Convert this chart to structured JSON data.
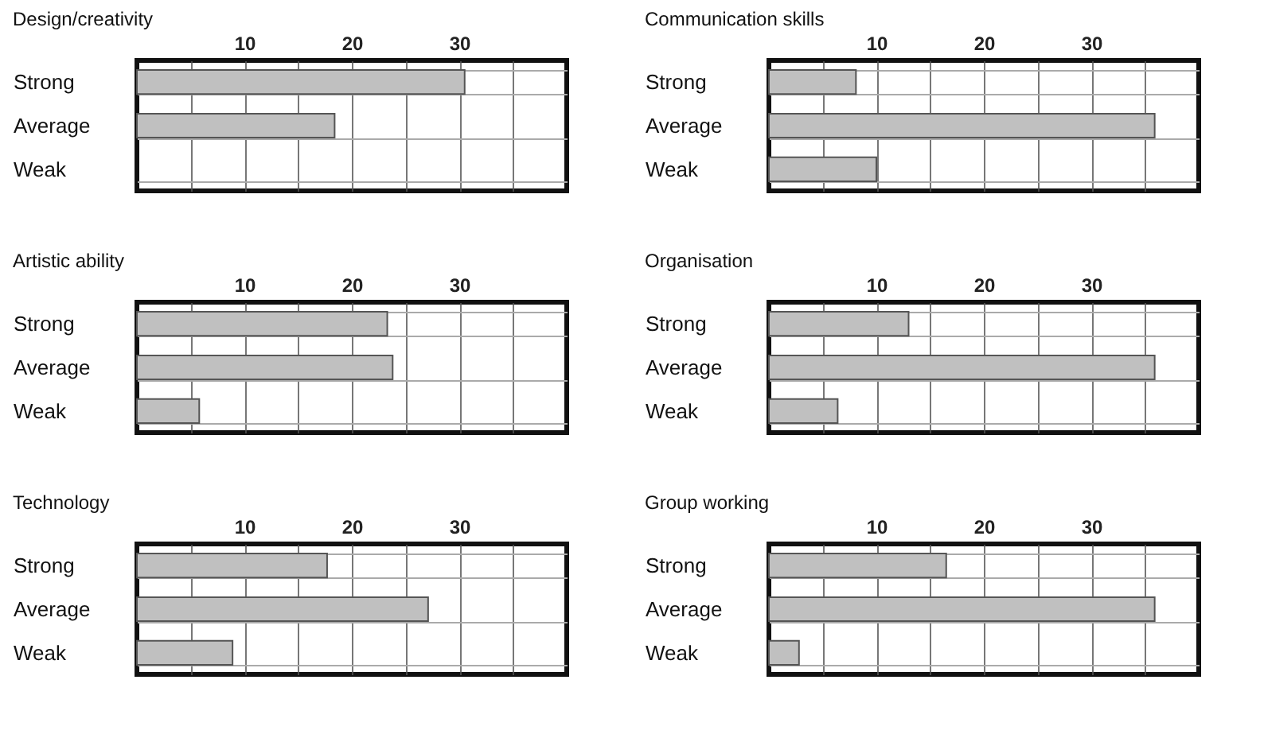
{
  "chart_data": [
    {
      "type": "bar",
      "orientation": "horizontal",
      "title": "Design/creativity",
      "categories": [
        "Strong",
        "Average",
        "Weak"
      ],
      "values": [
        30.5,
        18.4,
        0
      ],
      "color": "#c0c0c0",
      "xlim": [
        0,
        40
      ],
      "xticks": [
        {
          "value": 5,
          "label": null
        },
        10,
        {
          "value": 15,
          "label": null
        },
        20,
        {
          "value": 25,
          "label": null
        },
        30,
        {
          "value": 35,
          "label": null
        }
      ],
      "grid": true
    },
    {
      "type": "bar",
      "orientation": "horizontal",
      "title": "Communication skills",
      "categories": [
        "Strong",
        "Average",
        "Weak"
      ],
      "values": [
        8.1,
        35.9,
        10
      ],
      "color": "#c0c0c0",
      "xlim": [
        0,
        40
      ],
      "xticks": [
        {
          "value": 5,
          "label": null
        },
        10,
        {
          "value": 15,
          "label": null
        },
        20,
        {
          "value": 25,
          "label": null
        },
        30,
        {
          "value": 35,
          "label": null
        }
      ],
      "grid": true
    },
    {
      "type": "bar",
      "orientation": "horizontal",
      "title": "Artistic ability",
      "categories": [
        "Strong",
        "Average",
        "Weak"
      ],
      "values": [
        23.3,
        23.8,
        5.8
      ],
      "color": "#c0c0c0",
      "xlim": [
        0,
        40
      ],
      "xticks": [
        {
          "value": 5,
          "label": null
        },
        10,
        {
          "value": 15,
          "label": null
        },
        20,
        {
          "value": 25,
          "label": null
        },
        30,
        {
          "value": 35,
          "label": null
        }
      ],
      "grid": true
    },
    {
      "type": "bar",
      "orientation": "horizontal",
      "title": "Organisation",
      "categories": [
        "Strong",
        "Average",
        "Weak"
      ],
      "values": [
        13,
        35.9,
        6.4
      ],
      "color": "#c0c0c0",
      "xlim": [
        0,
        40
      ],
      "xticks": [
        {
          "value": 5,
          "label": null
        },
        10,
        {
          "value": 15,
          "label": null
        },
        20,
        {
          "value": 25,
          "label": null
        },
        30,
        {
          "value": 35,
          "label": null
        }
      ],
      "grid": true
    },
    {
      "type": "bar",
      "orientation": "horizontal",
      "title": "Technology",
      "categories": [
        "Strong",
        "Average",
        "Weak"
      ],
      "values": [
        17.7,
        27.1,
        8.9
      ],
      "color": "#c0c0c0",
      "xlim": [
        0,
        40
      ],
      "xticks": [
        {
          "value": 5,
          "label": null
        },
        10,
        {
          "value": 15,
          "label": null
        },
        20,
        {
          "value": 25,
          "label": null
        },
        30,
        {
          "value": 35,
          "label": null
        }
      ],
      "grid": true
    },
    {
      "type": "bar",
      "orientation": "horizontal",
      "title": "Group working",
      "categories": [
        "Strong",
        "Average",
        "Weak"
      ],
      "values": [
        16.5,
        35.9,
        2.8
      ],
      "color": "#c0c0c0",
      "xlim": [
        0,
        40
      ],
      "xticks": [
        {
          "value": 5,
          "label": null
        },
        10,
        {
          "value": 15,
          "label": null
        },
        20,
        {
          "value": 25,
          "label": null
        },
        30,
        {
          "value": 35,
          "label": null
        }
      ],
      "grid": true
    }
  ]
}
